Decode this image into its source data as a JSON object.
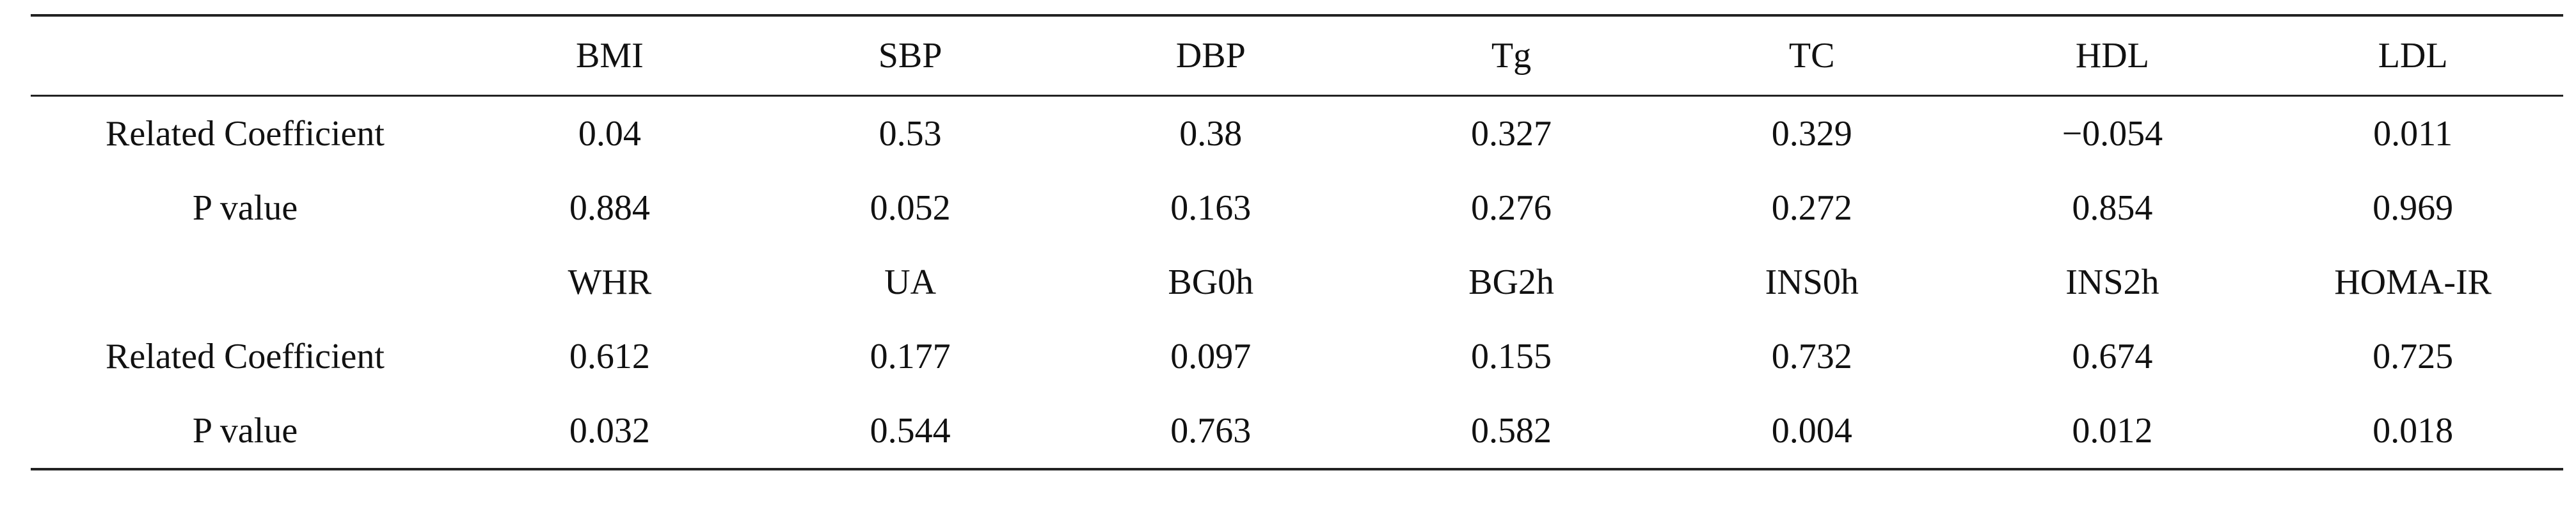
{
  "table": {
    "header_row": {
      "label": "",
      "columns": [
        "BMI",
        "SBP",
        "DBP",
        "Tg",
        "TC",
        "HDL",
        "LDL"
      ]
    },
    "rows": [
      {
        "label": "Related Coefficient",
        "values": [
          "0.04",
          "0.53",
          "0.38",
          "0.327",
          "0.329",
          "−0.054",
          "0.011"
        ]
      },
      {
        "label": "P value",
        "values": [
          "0.884",
          "0.052",
          "0.163",
          "0.276",
          "0.272",
          "0.854",
          "0.969"
        ]
      },
      {
        "label": "",
        "values": [
          "WHR",
          "UA",
          "BG0h",
          "BG2h",
          "INS0h",
          "INS2h",
          "HOMA-IR"
        ]
      },
      {
        "label": "Related Coefficient",
        "values": [
          "0.612",
          "0.177",
          "0.097",
          "0.155",
          "0.732",
          "0.674",
          "0.725"
        ]
      },
      {
        "label": "P value",
        "values": [
          "0.032",
          "0.544",
          "0.763",
          "0.582",
          "0.004",
          "0.012",
          "0.018"
        ]
      }
    ]
  }
}
